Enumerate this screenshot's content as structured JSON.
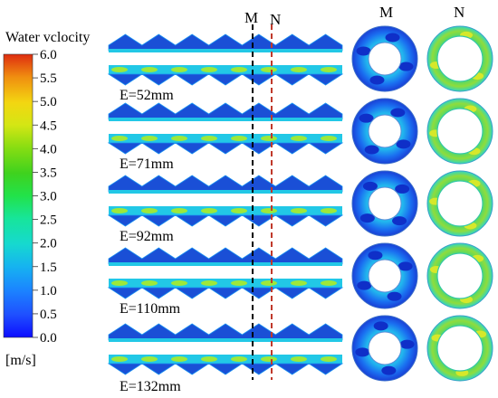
{
  "legend": {
    "title": "Water vclocity",
    "unit": "[m/s]",
    "ticks": [
      "6.0",
      "5.5",
      "5.0",
      "4.5",
      "4.0",
      "3.5",
      "3.0",
      "2.5",
      "2.0",
      "1.5",
      "1.0",
      "0.5",
      "0.0"
    ],
    "colors": [
      "#0d0dff",
      "#1f4fff",
      "#1b86ff",
      "#16b3f0",
      "#16d9cf",
      "#17e59a",
      "#22e24a",
      "#3fd21e",
      "#87dd12",
      "#d4e614",
      "#f3d611",
      "#f08e10",
      "#de2c10"
    ]
  },
  "section_labels": {
    "m": "M",
    "n": "N"
  },
  "cases": [
    {
      "label": "E=52mm"
    },
    {
      "label": "E=71mm"
    },
    {
      "label": "E=92mm"
    },
    {
      "label": "E=110mm"
    },
    {
      "label": "E=132mm"
    }
  ],
  "colors": {
    "m_line": "#000000",
    "n_line": "#c0392b",
    "channel_blue": "#1a4fd6",
    "channel_cyan": "#22c8e6",
    "channel_green": "#2fcf6a",
    "ring_green": "#7ed957"
  }
}
